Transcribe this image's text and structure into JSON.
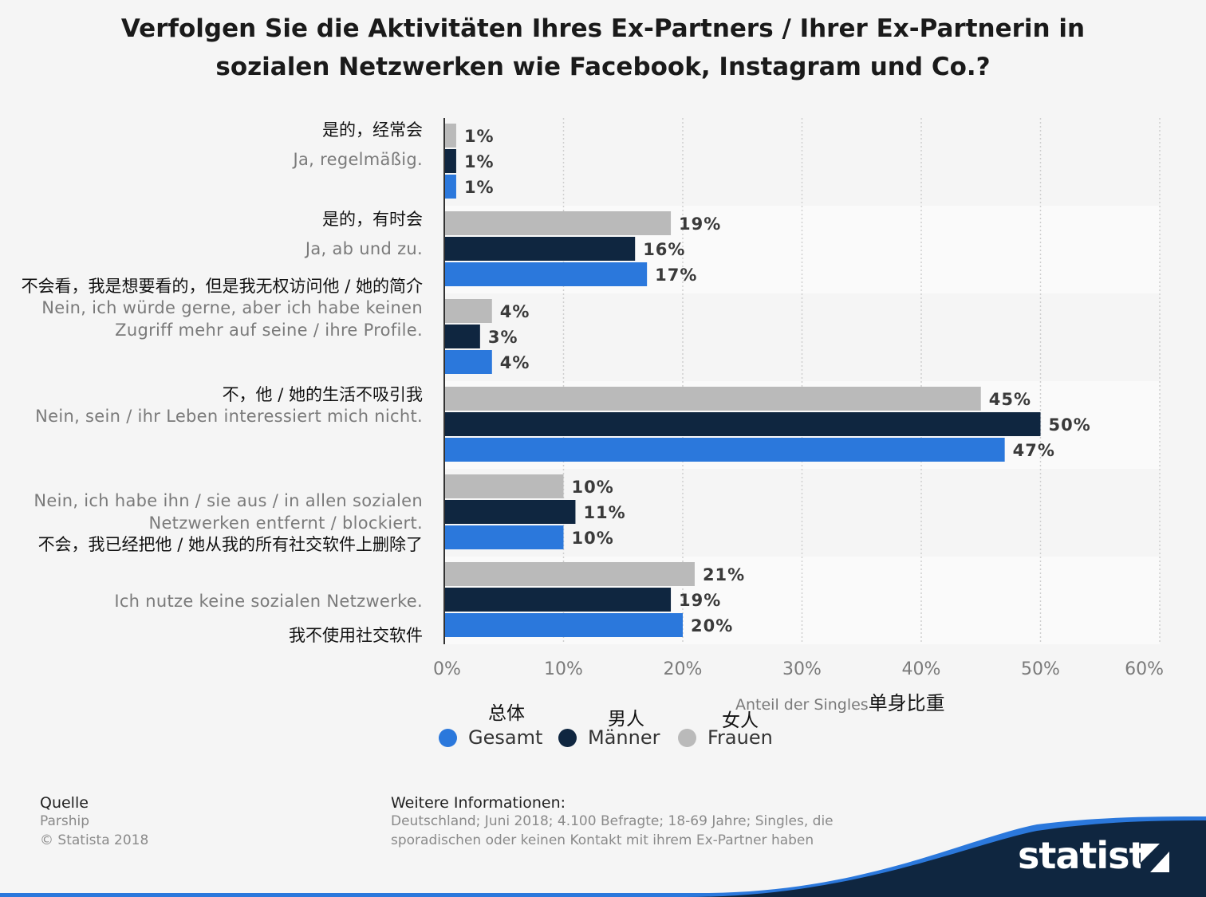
{
  "title": {
    "line1": "Verfolgen Sie die Aktivitäten Ihres Ex-Partners / Ihrer Ex-Partnerin in",
    "line2": "sozialen Netzwerken wie Facebook, Instagram und Co.?"
  },
  "categories": [
    {
      "cn": "是的，经常会",
      "de": "Ja, regelmäßig."
    },
    {
      "cn": "是的，有时会",
      "de": "Ja, ab und zu."
    },
    {
      "cn": "不会看，我是想要看的，但是我无权访问他 / 她的简介",
      "de": "Nein, ich würde gerne, aber ich habe keinen Zugriff mehr auf seine / ihre Profile."
    },
    {
      "cn": "不，他 / 她的生活不吸引我",
      "de": "Nein, sein / ihr Leben interessiert mich nicht."
    },
    {
      "cn": "不会，我已经把他 / 她从我的所有社交软件上删除了",
      "de": "Nein, ich habe ihn / sie aus / in allen sozialen Netzwerken entfernt / blockiert."
    },
    {
      "cn": "我不使用社交软件",
      "de": "Ich nutze keine sozialen Netzwerke."
    }
  ],
  "axis": {
    "title_de": "Anteil der Singles",
    "title_cn": "单身比重"
  },
  "legend": [
    {
      "cn": "总体",
      "de": "Gesamt",
      "color": "#2b78dc"
    },
    {
      "cn": "男人",
      "de": "Männer",
      "color": "#0f2640"
    },
    {
      "cn": "女人",
      "de": "Frauen",
      "color": "#bababa"
    }
  ],
  "footer": {
    "source_heading": "Quelle",
    "source_name": "Parship",
    "copyright": "© Statista 2018",
    "info_heading": "Weitere Informationen:",
    "info_line1": "Deutschland; Juni 2018; 4.100 Befragte; 18-69 Jahre; Singles, die",
    "info_line2": "sporadischen oder keinen Kontakt mit ihrem Ex-Partner haben",
    "brand": "statista"
  },
  "chart_data": {
    "type": "bar",
    "orientation": "horizontal",
    "categories": [
      "Ja, regelmäßig.",
      "Ja, ab und zu.",
      "Nein, ich würde gerne, aber ich habe keinen Zugriff mehr auf seine / ihre Profile.",
      "Nein, sein / ihr Leben interessiert mich nicht.",
      "Nein, ich habe ihn / sie aus / in allen sozialen Netzwerken entfernt / blockiert.",
      "Ich nutze keine sozialen Netzwerke."
    ],
    "series": [
      {
        "name": "Frauen",
        "color": "#bababa",
        "values": [
          1,
          19,
          4,
          45,
          10,
          21
        ]
      },
      {
        "name": "Männer",
        "color": "#0f2640",
        "values": [
          1,
          16,
          3,
          50,
          11,
          19
        ]
      },
      {
        "name": "Gesamt",
        "color": "#2b78dc",
        "values": [
          1,
          17,
          4,
          47,
          10,
          20
        ]
      }
    ],
    "xlim": [
      0,
      60
    ],
    "xticks": [
      "0%",
      "10%",
      "20%",
      "30%",
      "40%",
      "50%",
      "60%"
    ],
    "value_suffix": "%",
    "xlabel": "Anteil der Singles",
    "grid": true,
    "legend_position": "bottom"
  }
}
